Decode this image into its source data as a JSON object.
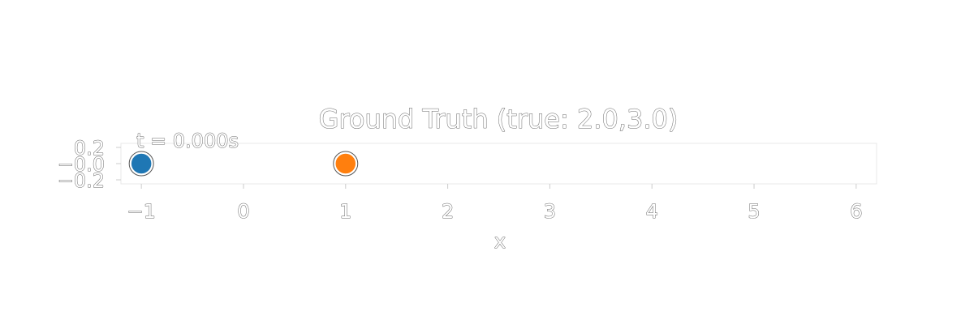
{
  "chart_data": {
    "type": "scatter",
    "title": "Ground Truth (true: 2.0,3.0)",
    "annotation": "t = 0.000s",
    "xlabel": "x",
    "ylabel": "",
    "xlim": [
      -1.2,
      6.2
    ],
    "ylim": [
      -0.25,
      0.25
    ],
    "x_ticks": [
      -1,
      0,
      1,
      2,
      3,
      4,
      5,
      6
    ],
    "x_tick_labels": [
      "−1",
      "0",
      "1",
      "2",
      "3",
      "4",
      "5",
      "6"
    ],
    "y_ticks": [
      0.2,
      0.0,
      -0.2
    ],
    "y_tick_labels": [
      "0.2",
      "−0.0",
      "−0.2"
    ],
    "grid": false,
    "points": [
      {
        "x": -1,
        "y": 0,
        "color": "#1f77b4"
      },
      {
        "x": 1,
        "y": 0,
        "color": "#ff7f0e"
      }
    ]
  }
}
